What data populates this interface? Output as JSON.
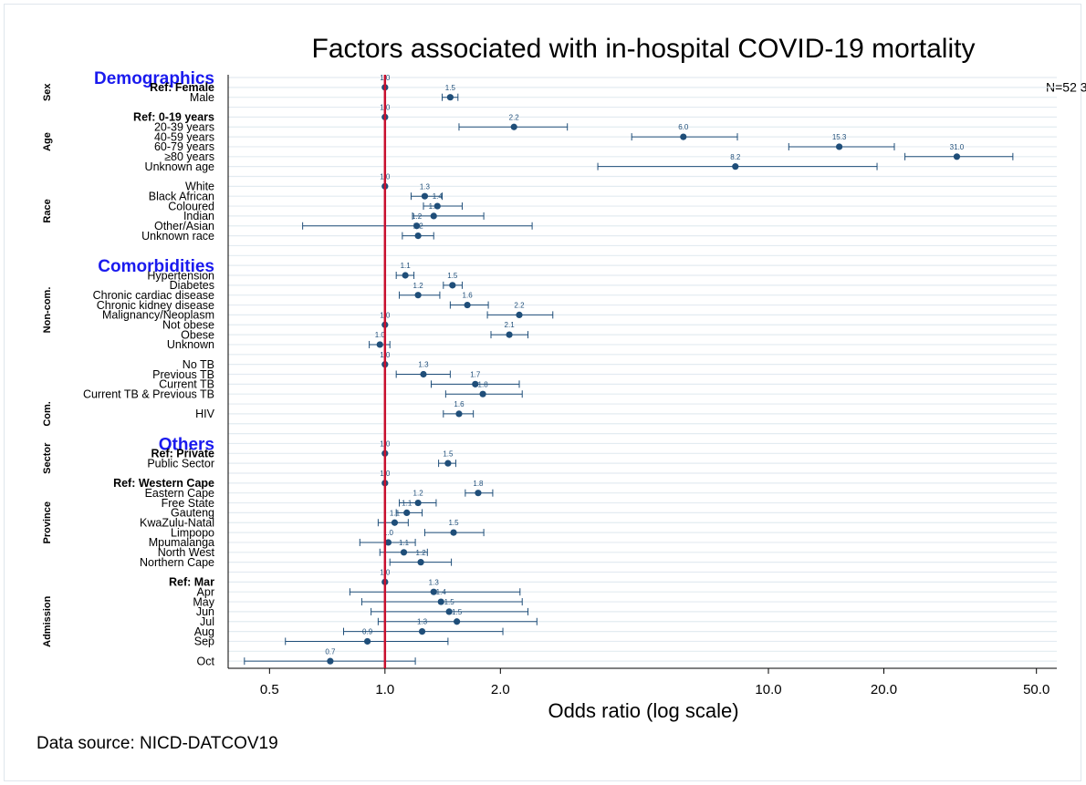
{
  "chart_data": {
    "type": "forest",
    "title": "Factors associated with in-hospital COVID-19  mortality",
    "xlabel": "Odds ratio (log scale)",
    "source": "Data source: NICD-DATCOV19",
    "annotation": "N=52 3",
    "annotation_color": "#e8141b",
    "xscale": "log",
    "xlim": [
      0.39,
      56.5
    ],
    "xticks": [
      {
        "value": 0.5,
        "label": "0.5"
      },
      {
        "value": 1,
        "label": "1.0"
      },
      {
        "value": 2,
        "label": "2.0"
      },
      {
        "value": 10,
        "label": "10.0"
      },
      {
        "value": 20,
        "label": "20.0"
      },
      {
        "value": 50,
        "label": "50.0"
      }
    ],
    "refline": 1,
    "refline_color": "#c8102e",
    "color": "#1f4e79",
    "section_color": "#1a1aee",
    "grid": true,
    "sections": [
      {
        "title": "Demographics",
        "groups": [
          {
            "label": "Sex",
            "rows": [
              {
                "label": "Ref: Female",
                "bold": true,
                "value": 1,
                "value_label": "1.0",
                "lo": null,
                "hi": null
              },
              {
                "label": "Male",
                "value": 1.48,
                "value_label": "1.5",
                "lo": 1.41,
                "hi": 1.55
              }
            ]
          },
          {
            "label": "Age",
            "rows": [
              {
                "label": "Ref: 0-19 years",
                "bold": true,
                "value": 1,
                "value_label": "1.0",
                "lo": null,
                "hi": null
              },
              {
                "label": "20-39 years",
                "value": 2.17,
                "value_label": "2.2",
                "lo": 1.56,
                "hi": 2.99
              },
              {
                "label": "40-59 years",
                "value": 6.0,
                "value_label": "6.0",
                "lo": 4.4,
                "hi": 8.3
              },
              {
                "label": "60-79 years",
                "value": 15.3,
                "value_label": "15.3",
                "lo": 11.3,
                "hi": 21.3
              },
              {
                "label": "≥80 years",
                "value": 31.0,
                "value_label": "31.0",
                "lo": 22.7,
                "hi": 43.4
              },
              {
                "label": "Unknown age",
                "value": 8.2,
                "value_label": "8.2",
                "lo": 3.59,
                "hi": 19.2
              }
            ]
          },
          {
            "label": "Race",
            "rows": [
              {
                "label": "White",
                "value": 1,
                "value_label": "1.0",
                "lo": null,
                "hi": null
              },
              {
                "label": "Black African",
                "value": 1.27,
                "value_label": "1.3",
                "lo": 1.17,
                "hi": 1.41
              },
              {
                "label": "Coloured",
                "value": 1.37,
                "value_label": "1.4",
                "lo": 1.26,
                "hi": 1.59
              },
              {
                "label": "Indian",
                "value": 1.34,
                "value_label": "1.3",
                "lo": 1.18,
                "hi": 1.81
              },
              {
                "label": "Other/Asian",
                "value": 1.21,
                "value_label": "1.2",
                "lo": 0.61,
                "hi": 2.42
              },
              {
                "label": "Unknown race",
                "value": 1.22,
                "value_label": "1.2",
                "lo": 1.11,
                "hi": 1.34
              }
            ]
          }
        ]
      },
      {
        "title": "Comorbidities",
        "groups": [
          {
            "label": "Non-com.",
            "rows": [
              {
                "label": "Hypertension",
                "value": 1.13,
                "value_label": "1.1",
                "lo": 1.07,
                "hi": 1.19
              },
              {
                "label": "Diabetes",
                "value": 1.5,
                "value_label": "1.5",
                "lo": 1.42,
                "hi": 1.59
              },
              {
                "label": "Chronic cardiac disease",
                "value": 1.22,
                "value_label": "1.2",
                "lo": 1.09,
                "hi": 1.39
              },
              {
                "label": "Chronic kidney disease",
                "value": 1.64,
                "value_label": "1.6",
                "lo": 1.48,
                "hi": 1.86
              },
              {
                "label": "Malignancy/Neoplasm",
                "value": 2.24,
                "value_label": "2.2",
                "lo": 1.85,
                "hi": 2.74
              },
              {
                "label": "Not obese",
                "value": 1,
                "value_label": "1.0",
                "lo": null,
                "hi": null
              },
              {
                "label": "Obese",
                "value": 2.11,
                "value_label": "2.1",
                "lo": 1.89,
                "hi": 2.36
              },
              {
                "label": "Unknown",
                "value": 0.97,
                "value_label": "1.0",
                "lo": 0.91,
                "hi": 1.03
              }
            ]
          },
          {
            "label": null,
            "rows": [
              {
                "label": "No TB",
                "value": 1,
                "value_label": "1.0",
                "lo": null,
                "hi": null
              },
              {
                "label": "Previous TB",
                "value": 1.26,
                "value_label": "1.3",
                "lo": 1.07,
                "hi": 1.48
              },
              {
                "label": "Current TB",
                "value": 1.72,
                "value_label": "1.7",
                "lo": 1.32,
                "hi": 2.24
              },
              {
                "label": "Current TB & Previous TB",
                "value": 1.8,
                "value_label": "1.8",
                "lo": 1.44,
                "hi": 2.28
              }
            ]
          },
          {
            "label": "Com.",
            "rows": [
              {
                "label": "HIV",
                "value": 1.56,
                "value_label": "1.6",
                "lo": 1.42,
                "hi": 1.7
              }
            ]
          }
        ]
      },
      {
        "title": "Others",
        "groups": [
          {
            "label": "Sector",
            "rows": [
              {
                "label": "Ref: Private",
                "bold": true,
                "value": 1,
                "value_label": "1.0",
                "lo": null,
                "hi": null
              },
              {
                "label": "Public Sector",
                "value": 1.46,
                "value_label": "1.5",
                "lo": 1.38,
                "hi": 1.53
              }
            ]
          },
          {
            "label": "Province",
            "rows": [
              {
                "label": "Ref: Western Cape",
                "bold": true,
                "value": 1,
                "value_label": "1.0",
                "lo": null,
                "hi": null
              },
              {
                "label": "Eastern Cape",
                "value": 1.75,
                "value_label": "1.8",
                "lo": 1.62,
                "hi": 1.91
              },
              {
                "label": "Free State",
                "value": 1.22,
                "value_label": "1.2",
                "lo": 1.09,
                "hi": 1.36
              },
              {
                "label": "Gauteng",
                "value": 1.14,
                "value_label": "1.1",
                "lo": 1.07,
                "hi": 1.25
              },
              {
                "label": "KwaZulu-Natal",
                "value": 1.06,
                "value_label": "1.1",
                "lo": 0.96,
                "hi": 1.15
              },
              {
                "label": "Limpopo",
                "value": 1.51,
                "value_label": "1.5",
                "lo": 1.27,
                "hi": 1.81
              },
              {
                "label": "Mpumalanga",
                "value": 1.02,
                "value_label": "1.0",
                "lo": 0.86,
                "hi": 1.2
              },
              {
                "label": "North West",
                "value": 1.12,
                "value_label": "1.1",
                "lo": 0.97,
                "hi": 1.29
              },
              {
                "label": "Northern Cape",
                "value": 1.24,
                "value_label": "1.2",
                "lo": 1.03,
                "hi": 1.49
              }
            ]
          },
          {
            "label": "Admission",
            "rows": [
              {
                "label": "Ref: Mar",
                "bold": true,
                "value": 1,
                "value_label": "1.0",
                "lo": null,
                "hi": null
              },
              {
                "label": "Apr",
                "value": 1.34,
                "value_label": "1.3",
                "lo": 0.81,
                "hi": 2.25
              },
              {
                "label": "May",
                "value": 1.4,
                "value_label": "1.4",
                "lo": 0.87,
                "hi": 2.28
              },
              {
                "label": "Jun",
                "value": 1.47,
                "value_label": "1.5",
                "lo": 0.92,
                "hi": 2.36
              },
              {
                "label": "Jul",
                "value": 1.54,
                "value_label": "1.5",
                "lo": 0.96,
                "hi": 2.49
              },
              {
                "label": "Aug",
                "value": 1.25,
                "value_label": "1.3",
                "lo": 0.78,
                "hi": 2.03
              },
              {
                "label": "Sep",
                "value": 0.9,
                "value_label": "0.9",
                "lo": 0.55,
                "hi": 1.46
              },
              null,
              {
                "label": "Oct",
                "value": 0.72,
                "value_label": "0.7",
                "lo": 0.43,
                "hi": 1.2
              }
            ]
          }
        ]
      }
    ]
  }
}
